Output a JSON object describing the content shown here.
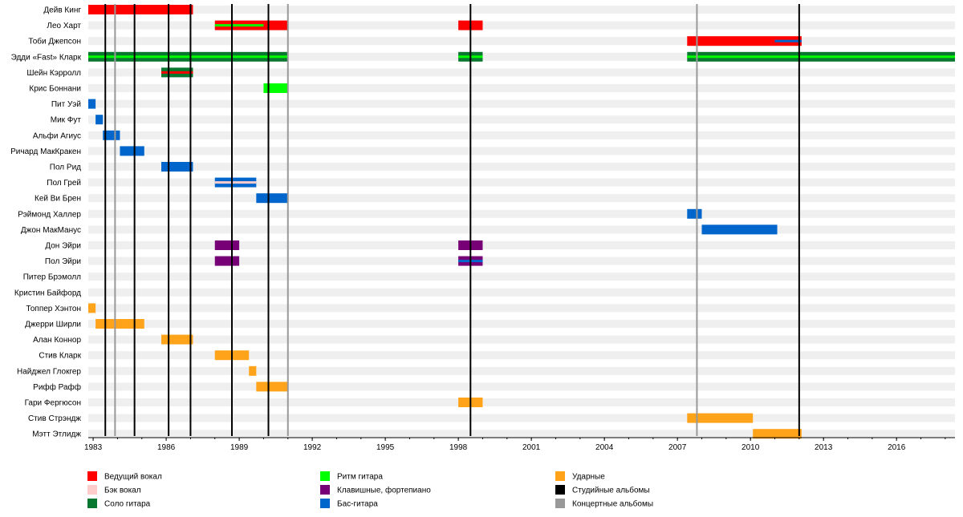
{
  "chart_data": {
    "type": "timeline",
    "title": "",
    "xlim": [
      1982.8,
      2018.4
    ],
    "x_ticks": [
      1983,
      1986,
      1989,
      1992,
      1995,
      1998,
      2001,
      2004,
      2007,
      2010,
      2013,
      2016
    ],
    "colors": {
      "lead_vocals": "#ff0000",
      "backing_vocals": "#ffcccc",
      "lead_guitar": "#087830",
      "rhythm_guitar": "#00ff00",
      "keyboards": "#770077",
      "bass": "#0066cc",
      "drums": "#ffa31a",
      "studio": "#000000",
      "live": "#999999",
      "row_band": "#efefef"
    },
    "members": [
      {
        "name": "Дейв Кинг",
        "bars": [
          {
            "role": "lead_vocals",
            "start": 1982.8,
            "end": 1987.1
          }
        ]
      },
      {
        "name": "Лео Харт",
        "bars": [
          {
            "role": "lead_vocals",
            "start": 1988.0,
            "end": 1991.0,
            "stripe": "rhythm_guitar",
            "stripe_end": 1990.0
          },
          {
            "role": "lead_vocals",
            "start": 1998.0,
            "end": 1999.0
          }
        ]
      },
      {
        "name": "Тоби Джепсон",
        "bars": [
          {
            "role": "lead_vocals",
            "start": 2007.4,
            "end": 2012.1,
            "stripe": "bass",
            "stripe_start": 2011.0
          }
        ]
      },
      {
        "name": "Эдди «Fast» Кларк",
        "bars": [
          {
            "role": "lead_guitar",
            "start": 1982.8,
            "end": 1991.0,
            "stripe": "rhythm_guitar"
          },
          {
            "role": "lead_guitar",
            "start": 1998.0,
            "end": 1999.0,
            "stripe": "rhythm_guitar"
          },
          {
            "role": "lead_guitar",
            "start": 2007.4,
            "end": 2018.4,
            "stripe": "rhythm_guitar"
          }
        ]
      },
      {
        "name": "Шейн Кэрролл",
        "bars": [
          {
            "role": "lead_guitar",
            "start": 1985.8,
            "end": 1987.1,
            "stripe": "lead_vocals"
          }
        ]
      },
      {
        "name": "Крис Боннани",
        "bars": [
          {
            "role": "rhythm_guitar",
            "start": 1990.0,
            "end": 1991.0
          }
        ]
      },
      {
        "name": "Пит Уэй",
        "bars": [
          {
            "role": "bass",
            "start": 1982.8,
            "end": 1983.1
          }
        ]
      },
      {
        "name": "Мик Фут",
        "bars": [
          {
            "role": "bass",
            "start": 1983.1,
            "end": 1983.4
          }
        ]
      },
      {
        "name": "Альфи Агиус",
        "bars": [
          {
            "role": "bass",
            "start": 1983.4,
            "end": 1984.1
          }
        ]
      },
      {
        "name": "Ричард МакКракен",
        "bars": [
          {
            "role": "bass",
            "start": 1984.1,
            "end": 1985.1
          }
        ]
      },
      {
        "name": "Пол Рид",
        "bars": [
          {
            "role": "bass",
            "start": 1985.8,
            "end": 1987.1
          }
        ]
      },
      {
        "name": "Пол Грей",
        "bars": [
          {
            "role": "bass",
            "start": 1988.0,
            "end": 1989.7,
            "stripe": "backing_vocals"
          }
        ]
      },
      {
        "name": "Кей Ви Брен",
        "bars": [
          {
            "role": "bass",
            "start": 1989.7,
            "end": 1991.0
          }
        ]
      },
      {
        "name": "Рэймонд Халлер",
        "bars": [
          {
            "role": "bass",
            "start": 2007.4,
            "end": 2008.0
          }
        ]
      },
      {
        "name": "Джон МакМанус",
        "bars": [
          {
            "role": "bass",
            "start": 2008.0,
            "end": 2011.1
          }
        ]
      },
      {
        "name": "Дон Эйри",
        "bars": [
          {
            "role": "keyboards",
            "start": 1988.0,
            "end": 1989.0
          },
          {
            "role": "keyboards",
            "start": 1998.0,
            "end": 1999.0
          }
        ]
      },
      {
        "name": "Пол Эйри",
        "bars": [
          {
            "role": "keyboards",
            "start": 1988.0,
            "end": 1989.0
          },
          {
            "role": "keyboards",
            "start": 1998.0,
            "end": 1999.0,
            "stripe": "bass"
          }
        ]
      },
      {
        "name": "Питер Брэмолл",
        "bars": []
      },
      {
        "name": "Кристин Байфорд",
        "bars": []
      },
      {
        "name": "Топпер Хэнтон",
        "bars": [
          {
            "role": "drums",
            "start": 1982.8,
            "end": 1983.1
          }
        ]
      },
      {
        "name": "Джерри Ширли",
        "bars": [
          {
            "role": "drums",
            "start": 1983.1,
            "end": 1985.1
          }
        ]
      },
      {
        "name": "Алан Коннор",
        "bars": [
          {
            "role": "drums",
            "start": 1985.8,
            "end": 1987.1
          }
        ]
      },
      {
        "name": "Стив Кларк",
        "bars": [
          {
            "role": "drums",
            "start": 1988.0,
            "end": 1989.4
          }
        ]
      },
      {
        "name": "Найджел Глокгер",
        "bars": [
          {
            "role": "drums",
            "start": 1989.4,
            "end": 1989.7
          }
        ]
      },
      {
        "name": "Рифф Рафф",
        "bars": [
          {
            "role": "drums",
            "start": 1989.7,
            "end": 1991.0
          }
        ]
      },
      {
        "name": "Гари Фергюсон",
        "bars": [
          {
            "role": "drums",
            "start": 1998.0,
            "end": 1999.0
          }
        ]
      },
      {
        "name": "Стив Стрэндж",
        "bars": [
          {
            "role": "drums",
            "start": 2007.4,
            "end": 2010.1
          }
        ]
      },
      {
        "name": "Мэтт Этлидж",
        "bars": [
          {
            "role": "drums",
            "start": 2010.1,
            "end": 2012.1
          }
        ]
      }
    ],
    "studio_albums": [
      1983.5,
      1984.7,
      1986.1,
      1987.0,
      1988.7,
      1990.2,
      1998.5,
      2012.0
    ],
    "live_albums": [
      1983.9,
      1991.0,
      2007.8
    ],
    "legend": [
      {
        "key": "lead_vocals",
        "label": "Ведущий вокал"
      },
      {
        "key": "backing_vocals",
        "label": "Бэк вокал"
      },
      {
        "key": "lead_guitar",
        "label": "Соло гитара"
      },
      {
        "key": "rhythm_guitar",
        "label": "Ритм гитара"
      },
      {
        "key": "keyboards",
        "label": "Клавишные, фортепиано"
      },
      {
        "key": "bass",
        "label": "Бас-гитара"
      },
      {
        "key": "drums",
        "label": "Ударные"
      },
      {
        "key": "studio",
        "label": "Студийные альбомы"
      },
      {
        "key": "live",
        "label": "Концертные альбомы"
      }
    ],
    "legend_placement": "bottom"
  }
}
